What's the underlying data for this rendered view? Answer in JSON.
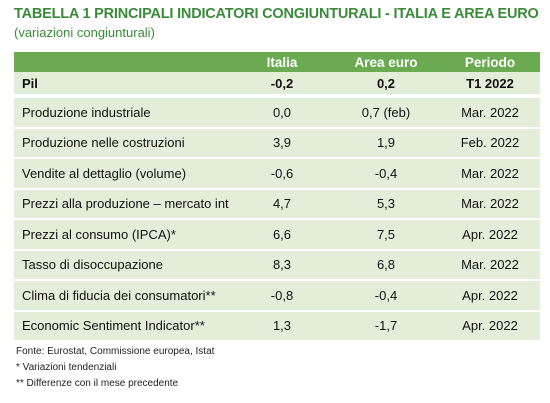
{
  "header": {
    "title": "TABELLA 1  PRINCIPALI INDICATORI CONGIUNTURALI - ITALIA E AREA EURO",
    "subtitle": "(variazioni congiunturali)"
  },
  "table": {
    "columns": [
      "",
      "Italia",
      "Area euro",
      "Periodo"
    ],
    "highlight_row": [
      "Pil",
      "-0,2",
      "0,2",
      "T1 2022"
    ],
    "rows": [
      [
        "Produzione industriale",
        "0,0",
        "0,7 (feb)",
        "Mar. 2022"
      ],
      [
        "Produzione nelle costruzioni",
        "3,9",
        "1,9",
        "Feb. 2022"
      ],
      [
        "Vendite al dettaglio (volume)",
        "-0,6",
        "-0,4",
        "Mar. 2022"
      ],
      [
        "Prezzi alla produzione – mercato int",
        "4,7",
        "5,3",
        "Mar. 2022"
      ],
      [
        "Prezzi al consumo (IPCA)*",
        "6,6",
        "7,5",
        "Apr. 2022"
      ],
      [
        "Tasso di disoccupazione",
        "8,3",
        "6,8",
        "Mar. 2022"
      ],
      [
        "Clima di fiducia dei consumatori**",
        "-0,8",
        "-0,4",
        "Apr. 2022"
      ],
      [
        "Economic Sentiment Indicator**",
        "1,3",
        "-1,7",
        "Apr. 2022"
      ]
    ]
  },
  "footnotes": [
    "Fonte: Eurostat, Commissione europea, Istat",
    "* Variazioni tendenziali",
    "** Differenze con il mese precedente"
  ]
}
